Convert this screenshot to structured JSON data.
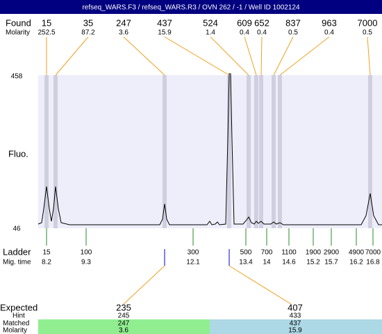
{
  "title": "refseq_WARS.F3 / refseq_WARS.R3 / OVN 262 / -1 / Well ID 1002124",
  "found": {
    "label": "Found",
    "molarity_label": "Molarity",
    "peaks": [
      {
        "size": 15,
        "molarity": 252.5
      },
      {
        "size": 35,
        "molarity": 87.2
      },
      {
        "size": 247,
        "molarity": 3.6
      },
      {
        "size": 437,
        "molarity": 15.9
      },
      {
        "size": 524,
        "molarity": 1.4
      },
      {
        "size": 609,
        "molarity": 0.4
      },
      {
        "size": 652,
        "molarity": 0.4
      },
      {
        "size": 837,
        "molarity": 0.5
      },
      {
        "size": 963,
        "molarity": 0.4
      },
      {
        "size": 7000,
        "molarity": 0.5
      }
    ]
  },
  "y_axis": {
    "label": "Fluo.",
    "top": 458,
    "bottom": 46
  },
  "ladder": {
    "label": "Ladder",
    "time_label": "Mig. time",
    "items": [
      {
        "size": 15,
        "time": 8.2
      },
      {
        "size": 100,
        "time": 9.3
      },
      {
        "size": 300,
        "time": 12.1
      },
      {
        "size": 500,
        "time": 13.4
      },
      {
        "size": 700,
        "time": 14
      },
      {
        "size": 1100,
        "time": 14.6
      },
      {
        "size": 1900,
        "time": 15.2
      },
      {
        "size": 2900,
        "time": 15.7
      },
      {
        "size": 4900,
        "time": 16.2
      },
      {
        "size": 7000,
        "time": 16.8
      }
    ]
  },
  "expected": {
    "label": "Expected",
    "hint_label": "Hint",
    "matched_label": "Matched",
    "molarity_label": "Molarity",
    "groups": [
      {
        "expected": 235,
        "hint": 245,
        "matched": 247,
        "molarity": 3.6
      },
      {
        "expected": 407,
        "hint": 433,
        "matched": 437,
        "molarity": 15.9
      }
    ]
  }
}
